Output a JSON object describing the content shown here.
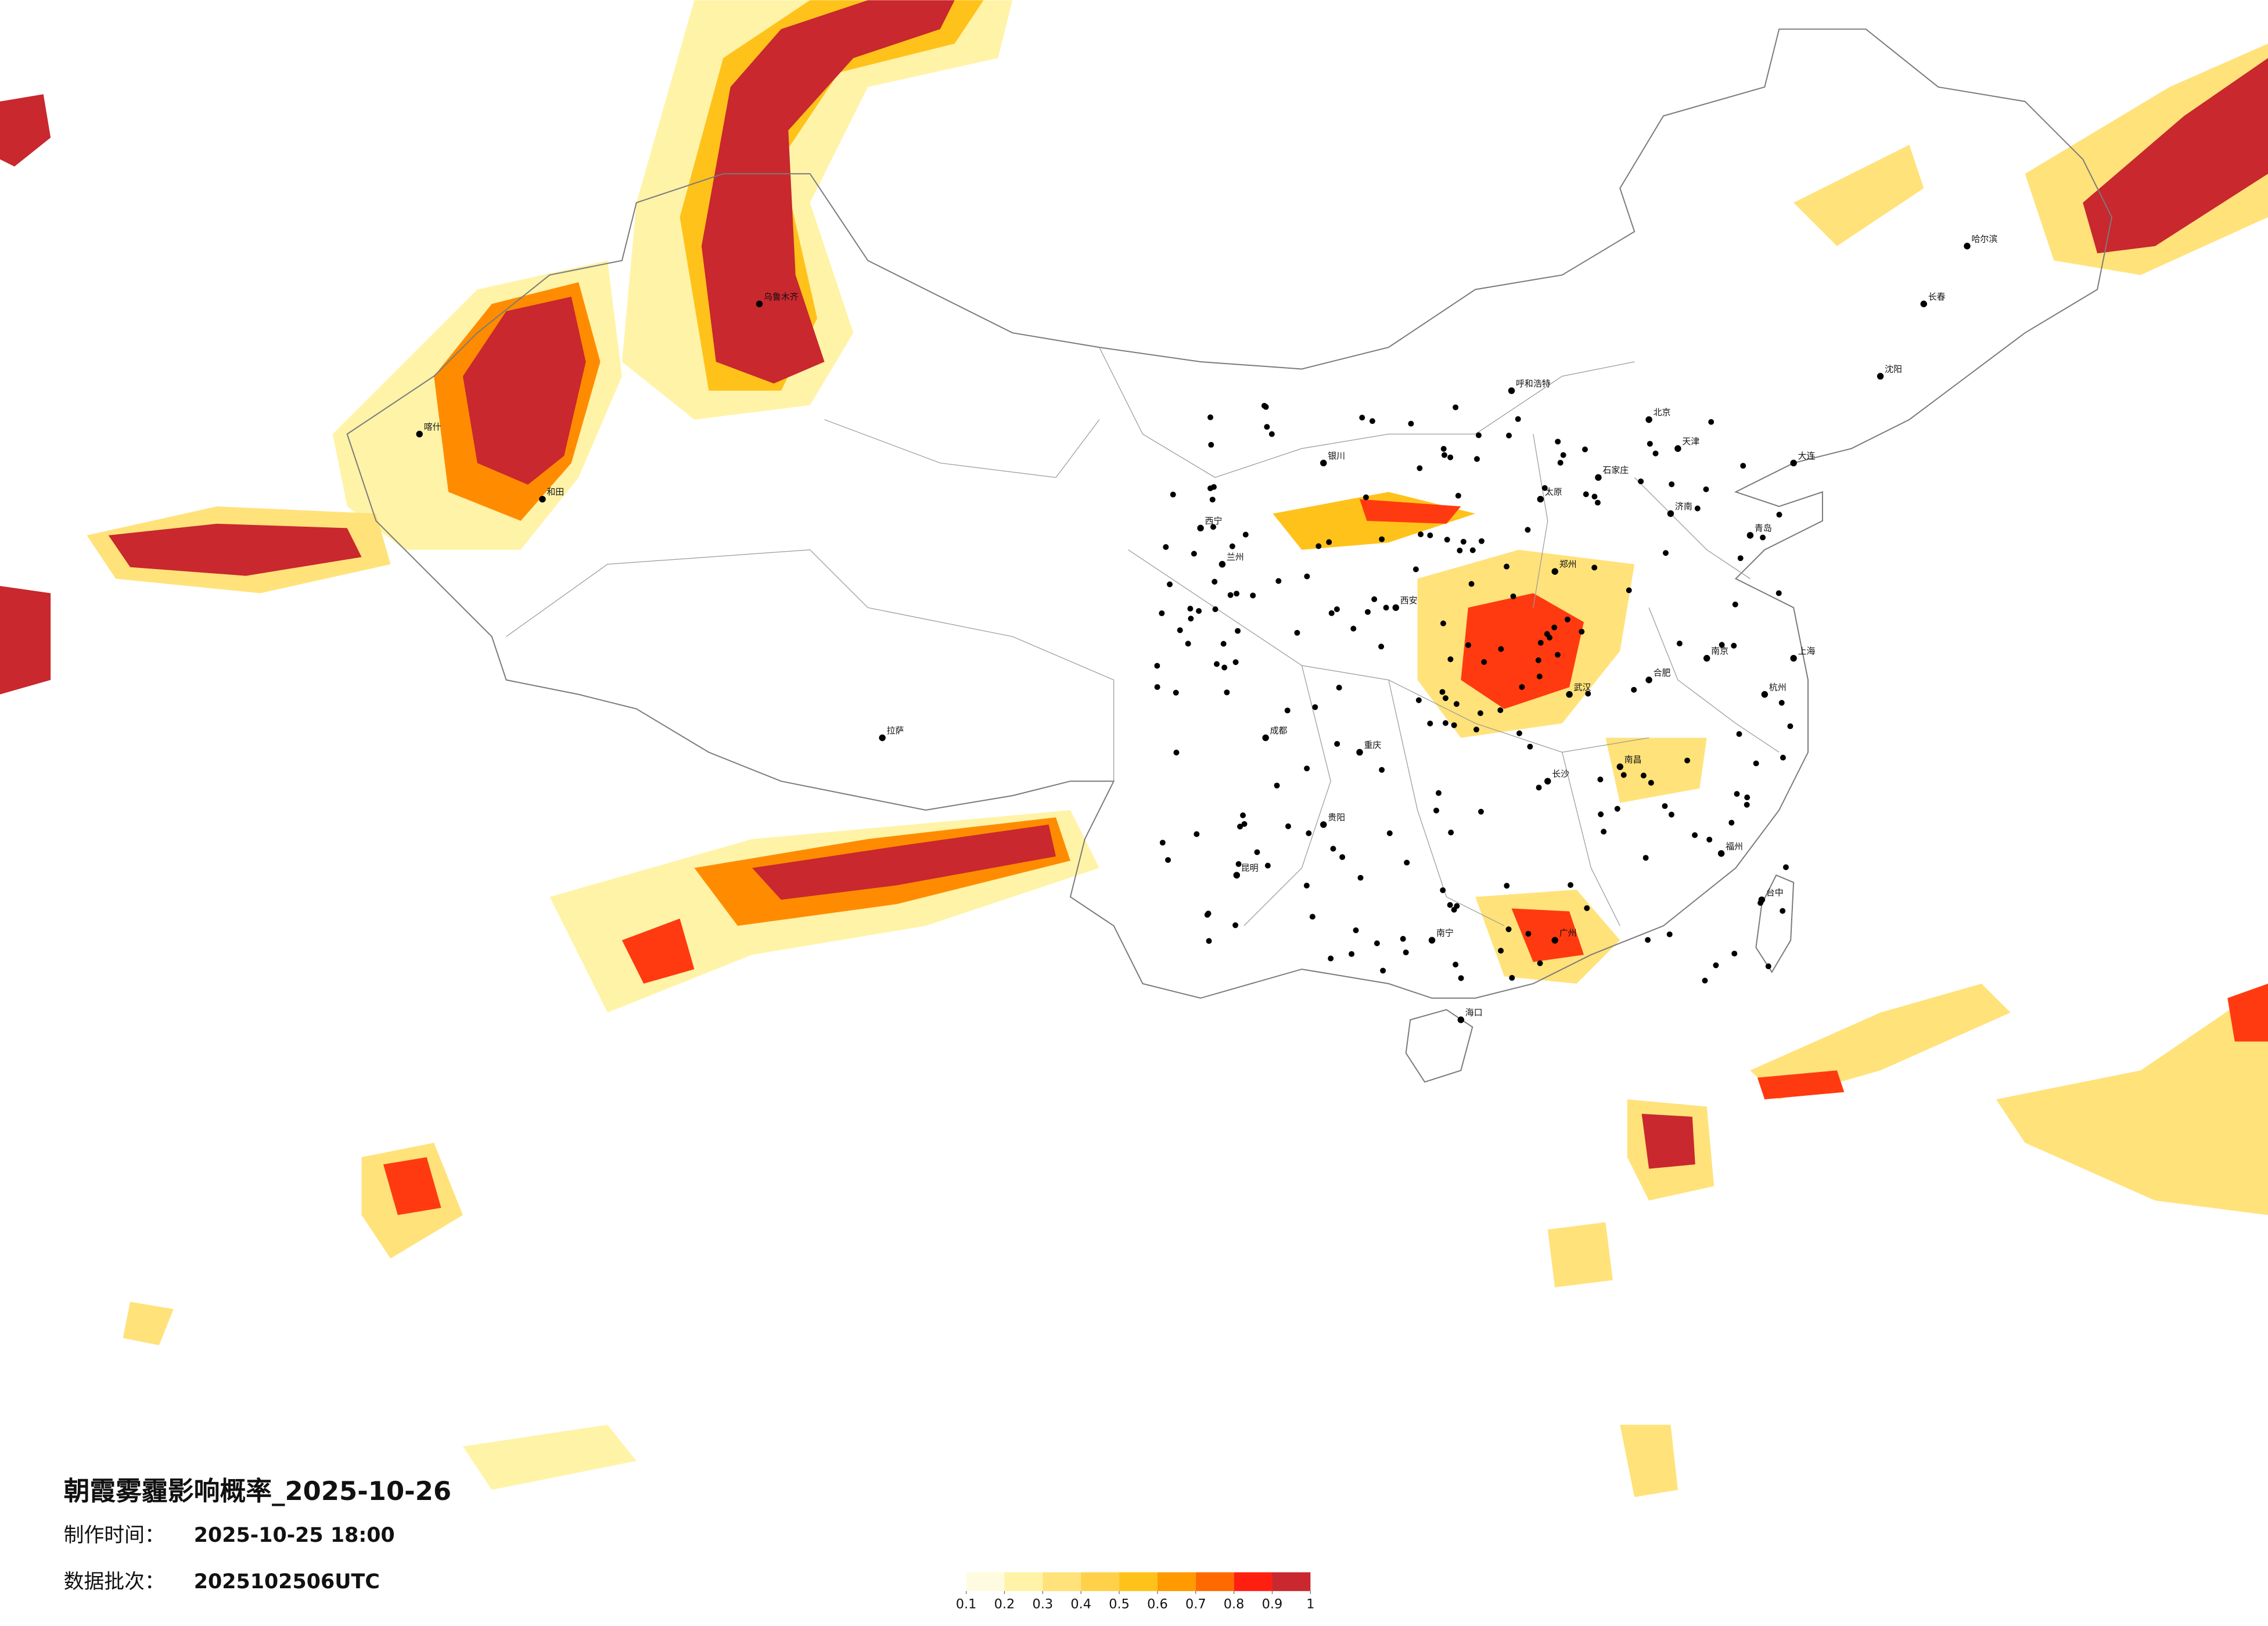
{
  "header": {
    "title": "朝霞雾霾影响概率_2025-10-26"
  },
  "info": {
    "production_time": {
      "label": "制作时间：",
      "value": "2025-10-25 18:00"
    },
    "data_batch": {
      "label": "数据批次：",
      "value": "2025102506UTC"
    }
  },
  "legend": {
    "ticks": [
      0.1,
      0.2,
      0.3,
      0.4,
      0.5,
      0.6,
      0.7,
      0.8,
      0.9,
      1
    ],
    "colors": [
      "#fffbe0",
      "#fff3a8",
      "#ffe27a",
      "#ffd04a",
      "#ffc21a",
      "#ff9a00",
      "#ff6a00",
      "#ff1f10",
      "#c8282e"
    ]
  },
  "cities": [
    "北京",
    "石家庄",
    "太原",
    "呼和浩特",
    "济南",
    "郑州",
    "武汉",
    "长沙",
    "广州",
    "南宁",
    "海口",
    "昆明",
    "成都",
    "西安",
    "兰州",
    "西宁",
    "银川",
    "哈尔滨",
    "长春",
    "沈阳",
    "拉萨",
    "乌鲁木齐",
    "喀什",
    "和田",
    "贵阳",
    "重庆",
    "南昌",
    "福州",
    "杭州",
    "上海",
    "南京",
    "合肥",
    "天津",
    "大连",
    "青岛",
    "台中"
  ]
}
